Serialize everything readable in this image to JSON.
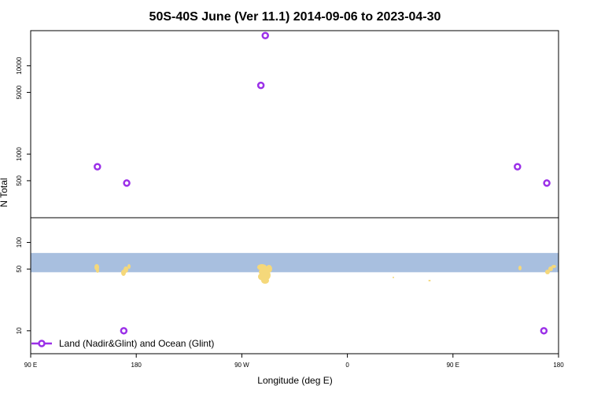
{
  "chart_data": {
    "type": "scatter",
    "title": "50S-40S June (Ver 11.1)   2014-09-06 to 2023-04-30",
    "xlabel": "Longitude (deg E)",
    "ylabel": "N Total",
    "scale": "log",
    "ylim": [
      5.5,
      25000
    ],
    "xlim": [
      90,
      450
    ],
    "x_ticks": [
      {
        "value": 90,
        "label": "90 E"
      },
      {
        "value": 162,
        "label": "180"
      },
      {
        "value": 234,
        "label": "90 W"
      },
      {
        "value": 306,
        "label": "0"
      },
      {
        "value": 378,
        "label": "90 E"
      },
      {
        "value": 450,
        "label": "180"
      }
    ],
    "y_ticks": [
      {
        "value": 10,
        "label": "10"
      },
      {
        "value": 50,
        "label": "50"
      },
      {
        "value": 100,
        "label": "100"
      },
      {
        "value": 500,
        "label": "500"
      },
      {
        "value": 1000,
        "label": "1000"
      },
      {
        "value": 5000,
        "label": "5000"
      },
      {
        "value": 10000,
        "label": "10000"
      }
    ],
    "series": [
      {
        "name": "Land (Nadir&Glint) and Ocean (Glint)",
        "color": "#9b30e8",
        "marker": "open-circle",
        "points": [
          {
            "x": 135.5,
            "y": 720
          },
          {
            "x": 155.5,
            "y": 470
          },
          {
            "x": 153.5,
            "y": 10
          },
          {
            "x": 250.0,
            "y": 22000
          },
          {
            "x": 247.0,
            "y": 6000
          },
          {
            "x": 422.0,
            "y": 720
          },
          {
            "x": 442.0,
            "y": 470
          },
          {
            "x": 440.0,
            "y": 10
          }
        ]
      }
    ],
    "map_strip": {
      "ocean_color": "#a8bfdf",
      "land_color": "#f5d87a",
      "y_range": [
        46,
        76
      ]
    },
    "legend_position": "bottom-left"
  }
}
